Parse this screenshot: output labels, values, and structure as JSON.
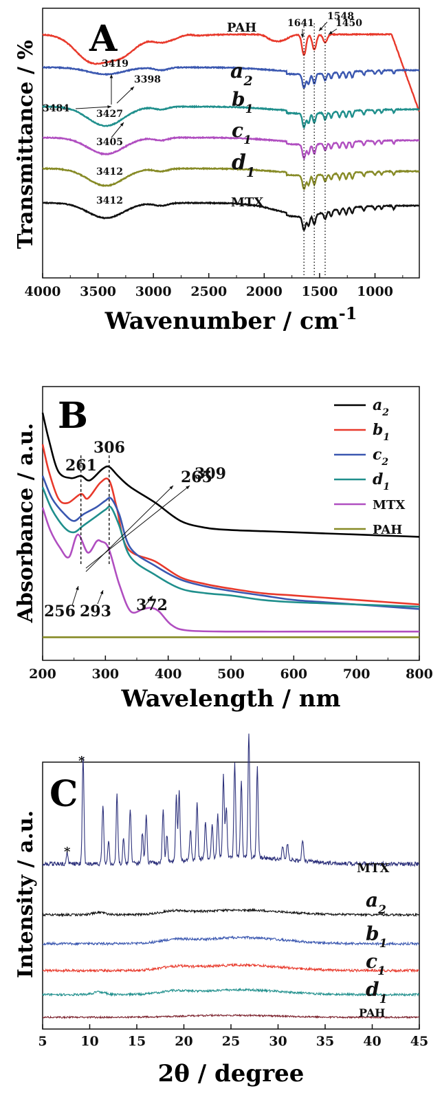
{
  "chart_data": [
    {
      "panel": "A",
      "type": "line",
      "xlabel": "Wavenumber / cm",
      "xlabel_sup": "-1",
      "ylabel": "Transmittance / %",
      "xlim": [
        4000,
        600
      ],
      "x_reversed": true,
      "x_ticks": [
        "4000",
        "3500",
        "3000",
        "2500",
        "2000",
        "1500",
        "1000"
      ],
      "x_tick_values": [
        4000,
        3500,
        3000,
        2500,
        2000,
        1500,
        1000
      ],
      "y_ticks": "none",
      "grid": false,
      "series": [
        {
          "name": "PAH",
          "color": "#e8392b",
          "offset": 50,
          "peaks": [
            3419,
            1641,
            1548,
            1450
          ]
        },
        {
          "name": "a",
          "sub": "2",
          "color": "#3a57b0",
          "offset": 98,
          "peaks": [
            3398,
            1641,
            1548,
            1450
          ]
        },
        {
          "name": "b",
          "sub": "1",
          "color": "#1f8f8c",
          "offset": 155,
          "peaks": [
            3427,
            1641,
            1548,
            1450
          ]
        },
        {
          "name": "c",
          "sub": "1",
          "color": "#b04ec0",
          "offset": 200,
          "peaks": [
            3405,
            1641,
            1548,
            1450
          ]
        },
        {
          "name": "d",
          "sub": "1",
          "color": "#868a25",
          "offset": 245,
          "peaks": [
            3412,
            1641,
            1548,
            1450
          ]
        },
        {
          "name": "MTX",
          "color": "#111111",
          "offset": 295,
          "peaks": [
            3412,
            1641,
            1548,
            1450
          ]
        }
      ],
      "annotations": [
        "3484",
        "3419",
        "3398",
        "3427",
        "3405",
        "3412",
        "3412",
        "1641",
        "1548",
        "1450"
      ],
      "reference_lines": [
        1641,
        1548,
        1450
      ]
    },
    {
      "panel": "B",
      "type": "line",
      "xlabel": "Wavelength / nm",
      "ylabel": "Absorbance / a.u.",
      "xlim": [
        200,
        800
      ],
      "x_ticks": [
        "200",
        "300",
        "400",
        "500",
        "600",
        "700",
        "800"
      ],
      "x_tick_values": [
        200,
        300,
        400,
        500,
        600,
        700,
        800
      ],
      "y_ticks": "none",
      "grid": false,
      "legend_position": "top-right",
      "series": [
        {
          "name": "a",
          "sub": "2",
          "color": "#000000",
          "x": [
            200,
            210,
            225,
            245,
            261,
            275,
            295,
            306,
            320,
            340,
            380,
            420,
            460,
            500,
            550,
            600,
            650,
            700,
            750,
            800
          ],
          "y": [
            1.0,
            0.88,
            0.74,
            0.71,
            0.72,
            0.7,
            0.75,
            0.76,
            0.72,
            0.67,
            0.6,
            0.52,
            0.49,
            0.48,
            0.475,
            0.47,
            0.465,
            0.46,
            0.455,
            0.45
          ]
        },
        {
          "name": "b",
          "sub": "1",
          "color": "#e8392b",
          "x": [
            200,
            210,
            225,
            240,
            261,
            272,
            292,
            306,
            318,
            335,
            380,
            420,
            460,
            500,
            550,
            600,
            650,
            700,
            750,
            800
          ],
          "y": [
            0.86,
            0.74,
            0.62,
            0.6,
            0.64,
            0.62,
            0.69,
            0.7,
            0.58,
            0.4,
            0.34,
            0.27,
            0.24,
            0.22,
            0.2,
            0.19,
            0.18,
            0.17,
            0.16,
            0.15
          ]
        },
        {
          "name": "c",
          "sub": "2",
          "color": "#3a57b0",
          "x": [
            200,
            215,
            235,
            250,
            265,
            285,
            300,
            309,
            322,
            340,
            380,
            420,
            460,
            500,
            550,
            600,
            650,
            700,
            750,
            800
          ],
          "y": [
            0.72,
            0.62,
            0.55,
            0.52,
            0.55,
            0.58,
            0.61,
            0.62,
            0.55,
            0.4,
            0.32,
            0.26,
            0.23,
            0.21,
            0.19,
            0.17,
            0.16,
            0.15,
            0.14,
            0.13
          ]
        },
        {
          "name": "d",
          "sub": "1",
          "color": "#1f8f8c",
          "x": [
            200,
            215,
            235,
            250,
            265,
            285,
            300,
            309,
            322,
            340,
            380,
            420,
            460,
            500,
            550,
            600,
            650,
            700,
            750,
            800
          ],
          "y": [
            0.67,
            0.57,
            0.49,
            0.47,
            0.5,
            0.54,
            0.57,
            0.58,
            0.5,
            0.36,
            0.28,
            0.22,
            0.2,
            0.19,
            0.17,
            0.16,
            0.155,
            0.15,
            0.145,
            0.14
          ]
        },
        {
          "name": "MTX",
          "color": "#b04ec0",
          "x": [
            200,
            212,
            228,
            242,
            256,
            272,
            286,
            293,
            305,
            322,
            340,
            360,
            372,
            385,
            405,
            430,
            500,
            600,
            700,
            800
          ],
          "y": [
            0.58,
            0.48,
            0.4,
            0.36,
            0.46,
            0.38,
            0.43,
            0.43,
            0.4,
            0.24,
            0.12,
            0.13,
            0.135,
            0.12,
            0.06,
            0.035,
            0.03,
            0.03,
            0.03,
            0.03
          ]
        },
        {
          "name": "PAH",
          "color": "#868a25",
          "x": [
            200,
            800
          ],
          "y": [
            0.005,
            0.005
          ]
        }
      ],
      "annotations": [
        "306",
        "261",
        "265",
        "309",
        "256",
        "293",
        "372"
      ],
      "reference_lines": [
        261,
        306
      ]
    },
    {
      "panel": "C",
      "type": "line",
      "xlabel": "2θ / degree",
      "ylabel": "Intensity / a.u.",
      "xlim": [
        5,
        45
      ],
      "x_ticks": [
        "5",
        "10",
        "15",
        "20",
        "25",
        "30",
        "35",
        "40",
        "45"
      ],
      "x_tick_values": [
        5,
        10,
        15,
        20,
        25,
        30,
        35,
        40,
        45
      ],
      "y_ticks": "none",
      "grid": false,
      "series": [
        {
          "name": "MTX",
          "color": "#2b2f7a",
          "peaks": [
            7.6,
            9.3,
            11.4,
            12.0,
            12.9,
            13.6,
            14.3,
            15.6,
            16.0,
            17.8,
            18.2,
            19.2,
            19.5,
            20.7,
            21.4,
            22.3,
            23.0,
            23.6,
            24.2,
            24.5,
            25.4,
            26.1,
            26.9,
            27.8,
            30.5,
            31.0,
            32.6
          ]
        },
        {
          "name": "a",
          "sub": "2",
          "color": "#111111"
        },
        {
          "name": "b",
          "sub": "1",
          "color": "#3a57b0"
        },
        {
          "name": "c",
          "sub": "1",
          "color": "#e8392b"
        },
        {
          "name": "d",
          "sub": "1",
          "color": "#1f8f8c"
        },
        {
          "name": "PAH",
          "color": "#7a1f2a"
        }
      ],
      "annotations": [
        "*",
        "*"
      ]
    }
  ],
  "panels": {
    "a": {
      "label": "A"
    },
    "b": {
      "label": "B"
    },
    "c": {
      "label": "C"
    }
  }
}
